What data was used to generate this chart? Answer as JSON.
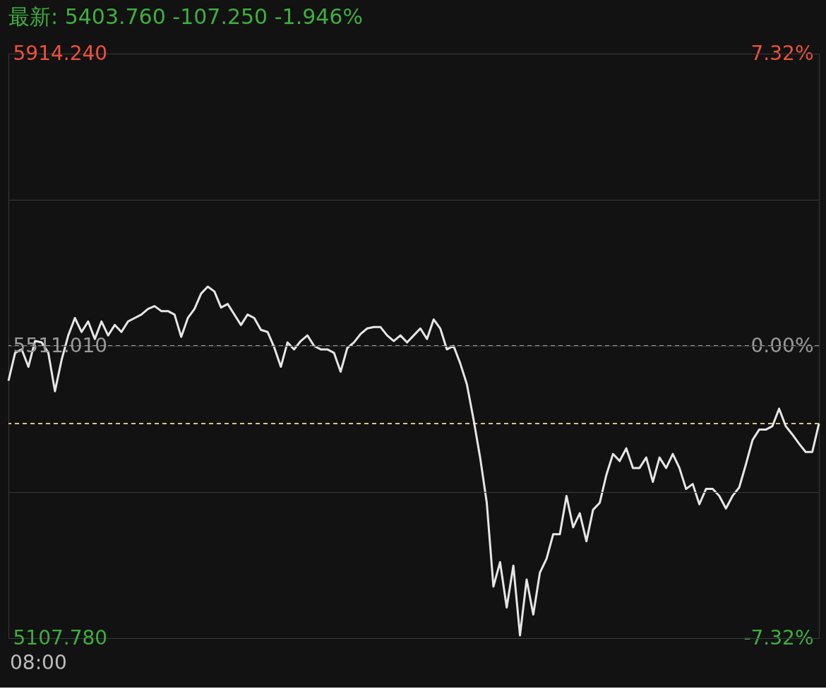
{
  "chart_data": {
    "type": "line",
    "title": "最新: 5403.760  -107.250  -1.946%",
    "categories": [
      null,
      null,
      null,
      null,
      null,
      null,
      null,
      null,
      null,
      null,
      null,
      null,
      null,
      null,
      null,
      null,
      null,
      null,
      null,
      null,
      null,
      null,
      null,
      null,
      null,
      null,
      null,
      null,
      null,
      null,
      null,
      null,
      null,
      null,
      null,
      null,
      null,
      null,
      null,
      null,
      null,
      null,
      null,
      null,
      null,
      null,
      null,
      null,
      null,
      null,
      null,
      null,
      null,
      null,
      null,
      null,
      null,
      null,
      null,
      null,
      null,
      null,
      null,
      null,
      null,
      null,
      null,
      null,
      null,
      null,
      null,
      null,
      null,
      null,
      null,
      null,
      null,
      null,
      null,
      null,
      null,
      null,
      null,
      null,
      null,
      null,
      null,
      null,
      null,
      null,
      null,
      null,
      null,
      null,
      null,
      null,
      null,
      null,
      null,
      null,
      null,
      null,
      null,
      null,
      null,
      null,
      null,
      null,
      null,
      null,
      null,
      null,
      null,
      null,
      null,
      null,
      null,
      null,
      null,
      null,
      null,
      null,
      null
    ],
    "annotations": [
      "08:00"
    ],
    "series": [
      {
        "color": "#e6e6e6",
        "values": [
          5462.9,
          5501.4,
          5506.2,
          5482.2,
          5517.8,
          5515.8,
          5501.4,
          5448.5,
          5491.8,
          5525.5,
          5549.5,
          5530.3,
          5544.7,
          5520.6,
          5544.7,
          5525.5,
          5539.9,
          5530.3,
          5544.7,
          5549.5,
          5554.3,
          5562.0,
          5565.9,
          5559.1,
          5559.1,
          5554.3,
          5523.5,
          5549.5,
          5562.0,
          5583.2,
          5592.8,
          5586.1,
          5564.0,
          5568.8,
          5554.3,
          5539.9,
          5554.3,
          5549.5,
          5533.2,
          5530.3,
          5509.1,
          5482.2,
          5515.8,
          5506.2,
          5517.8,
          5525.5,
          5511.0,
          5506.2,
          5506.2,
          5501.4,
          5475.4,
          5508.1,
          5515.8,
          5527.4,
          5535.1,
          5537.0,
          5537.0,
          5525.5,
          5517.8,
          5525.5,
          5515.8,
          5525.5,
          5535.1,
          5520.6,
          5547.6,
          5535.1,
          5506.2,
          5511.0,
          5487.0,
          5458.1,
          5410.0,
          5357.0,
          5294.5,
          5179.0,
          5212.7,
          5150.1,
          5207.9,
          5111.6,
          5188.6,
          5140.5,
          5198.3,
          5217.5,
          5251.2,
          5251.2,
          5304.1,
          5260.8,
          5280.1,
          5241.6,
          5284.9,
          5294.5,
          5333.0,
          5361.9,
          5352.2,
          5369.6,
          5342.6,
          5342.6,
          5357.0,
          5323.4,
          5357.0,
          5342.6,
          5361.9,
          5342.6,
          5313.7,
          5320.5,
          5292.6,
          5313.7,
          5313.7,
          5304.1,
          5286.8,
          5304.1,
          5315.7,
          5347.4,
          5381.1,
          5395.5,
          5395.5,
          5400.4,
          5424.4,
          5400.4,
          5388.8,
          5376.3,
          5364.7,
          5364.7,
          5403.76
        ]
      }
    ],
    "ylim": [
      5107.78,
      5914.24
    ],
    "yticks": [
      {
        "value": 5914.24,
        "label": "5914.240"
      },
      {
        "value": 5712.625,
        "label": null
      },
      {
        "value": 5511.01,
        "label": "5511.010"
      },
      {
        "value": 5309.395,
        "label": null
      },
      {
        "value": 5107.78,
        "label": "5107.780"
      }
    ],
    "y2lim": [
      -7.32,
      7.32
    ],
    "y2ticks": [
      {
        "value": 7.32,
        "label": "7.32%"
      },
      {
        "value": 0,
        "label": "0.00%"
      },
      {
        "value": -7.32,
        "label": "-7.32%"
      }
    ],
    "ref_lines": [
      {
        "axis": "y",
        "value": 5511.01,
        "color": "#9a9a9a",
        "line_style": "dashed"
      },
      {
        "axis": "y",
        "value": 5403.76,
        "color": "#d9c48c",
        "line_style": "dashed"
      }
    ],
    "grid": "y",
    "marker": "none",
    "line_style": "solid"
  }
}
